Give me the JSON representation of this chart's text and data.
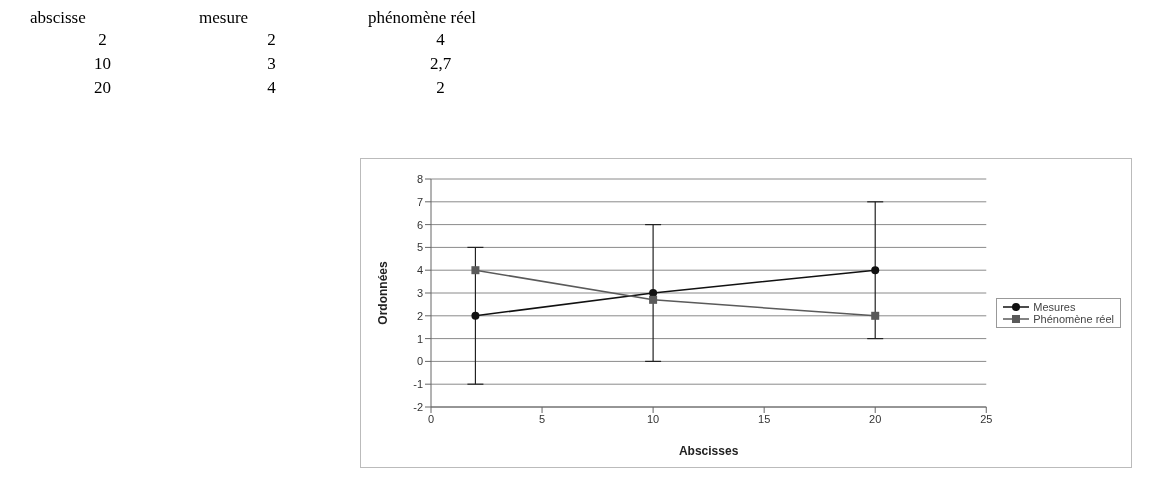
{
  "chart_data": [
    {
      "type": "other",
      "categories": [
        "abscisse",
        "mesure",
        "phénomène réel"
      ],
      "cell_labels": [
        [
          "2",
          "2",
          "4"
        ],
        [
          "10",
          "3",
          "2,7"
        ],
        [
          "20",
          "4",
          "2"
        ]
      ]
    },
    {
      "type": "line",
      "xlabel": "Abscisses",
      "ylabel": "Ordonnées",
      "x": [
        2,
        10,
        20
      ],
      "series": [
        {
          "name": "Mesures",
          "color": "#111111",
          "values": [
            2,
            3,
            4
          ],
          "errors": [
            3,
            3,
            3
          ],
          "marker": "circle"
        },
        {
          "name": "Phénomène réel",
          "color": "#5a5a5a",
          "values": [
            4,
            2.7,
            2
          ],
          "marker": "square"
        }
      ],
      "xlim": [
        0,
        25
      ],
      "xticks": [
        0,
        5,
        10,
        15,
        20,
        25
      ],
      "ylim": [
        -2,
        8
      ],
      "yticks": [
        -2,
        -1,
        0,
        1,
        2,
        3,
        4,
        5,
        6,
        7,
        8
      ],
      "grid": "y",
      "legend": "right",
      "line_style": "solid"
    }
  ]
}
